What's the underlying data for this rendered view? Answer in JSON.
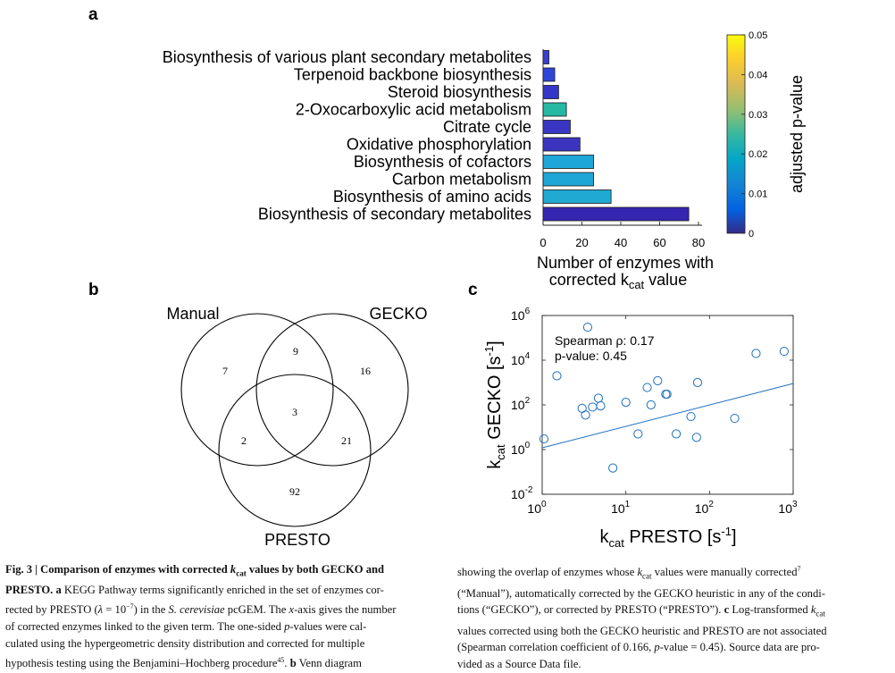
{
  "panels": {
    "a": "a",
    "b": "b",
    "c": "c"
  },
  "chart_data": [
    {
      "type": "bar",
      "orientation": "horizontal",
      "categories": [
        "Biosynthesis of various plant secondary metabolites",
        "Terpenoid backbone biosynthesis",
        "Steroid biosynthesis",
        "2-Oxocarboxylic acid metabolism",
        "Citrate cycle",
        "Oxidative phosphorylation",
        "Biosynthesis of cofactors",
        "Carbon metabolism",
        "Biosynthesis of amino acids",
        "Biosynthesis of secondary metabolites"
      ],
      "values": [
        3,
        6,
        8,
        12,
        14,
        19,
        26,
        26,
        35,
        75
      ],
      "adjusted_p_values": [
        0.002,
        0.003,
        0.003,
        0.022,
        0.003,
        0.003,
        0.019,
        0.019,
        0.018,
        0.001
      ],
      "bar_colors": [
        "#3a3fcf",
        "#2f45da",
        "#3436c8",
        "#25b8a2",
        "#3936c4",
        "#3a34be",
        "#1fa6d8",
        "#1ea6d6",
        "#1fa9d3",
        "#3426b0"
      ],
      "xlabel": "Number of enzymes with corrected k_cat value",
      "xlabel_lines": [
        "Number of enzymes with",
        "corrected k",
        "cat",
        " value"
      ],
      "xlim": [
        0,
        80
      ],
      "xticks": [
        "0",
        "20",
        "40",
        "60",
        "80"
      ],
      "colorbar": {
        "label": "adjusted p-value",
        "range": [
          0,
          0.05
        ],
        "ticks": [
          "0",
          "0.01",
          "0.02",
          "0.03",
          "0.04",
          "0.05"
        ]
      }
    },
    {
      "type": "scatter",
      "scale": "log-log",
      "points": [
        [
          1.5,
          2000
        ],
        [
          3.5,
          300000
        ],
        [
          1.05,
          3
        ],
        [
          3.0,
          70
        ],
        [
          3.3,
          35
        ],
        [
          4.0,
          80
        ],
        [
          4.7,
          200
        ],
        [
          5.0,
          90
        ],
        [
          10,
          130
        ],
        [
          14,
          5
        ],
        [
          18,
          600
        ],
        [
          20,
          100
        ],
        [
          24,
          1200
        ],
        [
          30,
          300
        ],
        [
          31,
          300
        ],
        [
          40,
          5
        ],
        [
          60,
          30
        ],
        [
          70,
          3.5
        ],
        [
          72,
          1000
        ],
        [
          200,
          25
        ],
        [
          360,
          20000
        ],
        [
          780,
          25000
        ],
        [
          7,
          0.15
        ]
      ],
      "fit_line": {
        "x": [
          1,
          1000
        ],
        "y": [
          1.2,
          900
        ]
      },
      "xlabel": [
        "k",
        "cat",
        " PRESTO [s",
        "-1",
        "]"
      ],
      "ylabel": [
        "k",
        "cat",
        " GECKO [s",
        "-1",
        "]"
      ],
      "xlim": [
        1,
        1000
      ],
      "ylim": [
        0.01,
        1000000
      ],
      "xticks": [
        {
          "base": "10",
          "exp": "0"
        },
        {
          "base": "10",
          "exp": "1"
        },
        {
          "base": "10",
          "exp": "2"
        },
        {
          "base": "10",
          "exp": "3"
        }
      ],
      "yticks": [
        {
          "base": "10",
          "exp": "-2"
        },
        {
          "base": "10",
          "exp": "0"
        },
        {
          "base": "10",
          "exp": "2"
        },
        {
          "base": "10",
          "exp": "4"
        },
        {
          "base": "10",
          "exp": "6"
        }
      ],
      "annotations": [
        "Spearman ρ: 0.17",
        "p-value: 0.45"
      ]
    }
  ],
  "venn": {
    "sets": [
      "Manual",
      "GECKO",
      "PRESTO"
    ],
    "regions": {
      "manual_only": "7",
      "manual_gecko": "9",
      "gecko_only": "16",
      "all_three": "3",
      "manual_presto": "2",
      "gecko_presto": "21",
      "presto_only": "92"
    }
  },
  "caption": {
    "left": [
      [
        {
          "t": "Fig. 3 | Comparison of enzymes with corrected ",
          "b": 1
        },
        {
          "t": "k",
          "b": 1,
          "i": 1
        },
        {
          "t": "cat",
          "b": 1,
          "sub": 1
        },
        {
          "t": " values by both GECKO and",
          "b": 1
        }
      ],
      [
        {
          "t": "PRESTO. a",
          "b": 1
        },
        {
          "t": " KEGG Pathway terms significantly enriched in the set of enzymes cor-"
        }
      ],
      [
        {
          "t": "rected by PRESTO ("
        },
        {
          "t": "λ",
          "i": 1
        },
        {
          "t": " = 10"
        },
        {
          "t": "−7",
          "sup": 1
        },
        {
          "t": ") in the "
        },
        {
          "t": "S. cerevisiae",
          "i": 1
        },
        {
          "t": " pcGEM. The "
        },
        {
          "t": "x",
          "i": 1
        },
        {
          "t": "-axis gives the number"
        }
      ],
      [
        {
          "t": "of corrected enzymes linked to the given term. The one-sided "
        },
        {
          "t": "p",
          "i": 1
        },
        {
          "t": "-values were cal-"
        }
      ],
      [
        {
          "t": "culated using the hypergeometric density distribution and corrected for multiple"
        }
      ],
      [
        {
          "t": "hypothesis testing using the Benjamini–Hochberg procedure"
        },
        {
          "t": "45",
          "sup": 1
        },
        {
          "t": ". "
        },
        {
          "t": "b",
          "b": 1
        },
        {
          "t": " Venn diagram"
        }
      ]
    ],
    "right": [
      [
        {
          "t": "showing the overlap of enzymes whose "
        },
        {
          "t": "k",
          "i": 1
        },
        {
          "t": "cat",
          "sub": 1
        },
        {
          "t": " values were manually corrected"
        },
        {
          "t": "7",
          "sup": 1
        }
      ],
      [
        {
          "t": "(“Manual”), automatically corrected by the GECKO heuristic in any of the condi-"
        }
      ],
      [
        {
          "t": "tions (“GECKO”), or corrected by PRESTO (“PRESTO”). "
        },
        {
          "t": "c",
          "b": 1
        },
        {
          "t": " Log-transformed "
        },
        {
          "t": "k",
          "i": 1
        },
        {
          "t": "cat",
          "sub": 1
        }
      ],
      [
        {
          "t": "values corrected using both the GECKO heuristic and PRESTO are not associated"
        }
      ],
      [
        {
          "t": "(Spearman correlation coefficient of 0.166, "
        },
        {
          "t": "p",
          "i": 1
        },
        {
          "t": "-value = 0.45). Source data are pro-"
        }
      ],
      [
        {
          "t": "vided as a Source Data file."
        }
      ]
    ]
  }
}
